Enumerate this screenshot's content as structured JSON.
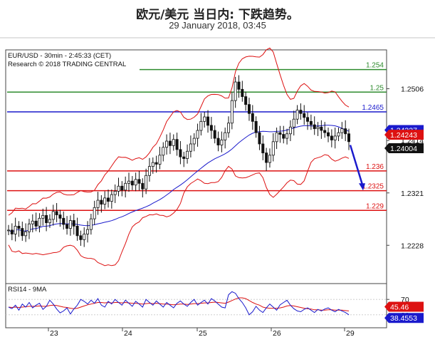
{
  "header": {
    "title": "欧元/美元 当日内: 下跌趋势。",
    "subtitle": "29 January 2018, 03:45"
  },
  "chart_data": {
    "type": "line",
    "symbol_line": "EUR/USD - 30min - 2:45:33 (CET)",
    "research_line": "Research © 2018 TRADING CENTRAL",
    "x_ticks": [
      "23",
      "24",
      "25",
      "26",
      "29"
    ],
    "y_ticks": [
      1.2506,
      1.2414,
      1.2321,
      1.2228
    ],
    "y_range": [
      1.216,
      1.2575
    ],
    "levels": [
      {
        "value": 1.254,
        "label": "1.254",
        "color": "#2e8b2e"
      },
      {
        "value": 1.25,
        "label": "1.25",
        "color": "#2e8b2e"
      },
      {
        "value": 1.2465,
        "label": "1.2465",
        "color": "#1a1acc"
      },
      {
        "value": 1.236,
        "label": "1.236",
        "color": "#dd1111"
      },
      {
        "value": 1.2325,
        "label": "1.2325",
        "color": "#dd1111"
      },
      {
        "value": 1.229,
        "label": "1.229",
        "color": "#dd1111"
      }
    ],
    "price_tags": [
      {
        "value": 1.24327,
        "label": "1.24327",
        "bg": "#1a1acc"
      },
      {
        "value": 1.24243,
        "label": "1.24243",
        "bg": "#dd1111"
      },
      {
        "value": 1.24004,
        "label": "1.24004",
        "bg": "#111111"
      }
    ],
    "price_series": [
      1.2255,
      1.2248,
      1.2262,
      1.2258,
      1.2245,
      1.2252,
      1.2266,
      1.2271,
      1.2262,
      1.2276,
      1.2281,
      1.2268,
      1.2274,
      1.2288,
      1.2282,
      1.2276,
      1.2265,
      1.2258,
      1.2272,
      1.2262,
      1.2245,
      1.2238,
      1.2248,
      1.2256,
      1.2275,
      1.2295,
      1.2308,
      1.2301,
      1.2312,
      1.2306,
      1.2318,
      1.2324,
      1.2333,
      1.2326,
      1.2338,
      1.2342,
      1.2335,
      1.2345,
      1.2338,
      1.2328,
      1.2352,
      1.2368,
      1.2375,
      1.2372,
      1.2388,
      1.2402,
      1.2413,
      1.2405,
      1.2416,
      1.2398,
      1.2385,
      1.2382,
      1.2395,
      1.2408,
      1.2418,
      1.2432,
      1.2448,
      1.2456,
      1.2441,
      1.2432,
      1.2418,
      1.2406,
      1.2415,
      1.2428,
      1.2445,
      1.2485,
      1.2518,
      1.2505,
      1.2492,
      1.2478,
      1.2462,
      1.2448,
      1.2428,
      1.2408,
      1.2392,
      1.2375,
      1.2388,
      1.2412,
      1.2428,
      1.2425,
      1.2418,
      1.2426,
      1.2438,
      1.2452,
      1.2468,
      1.2462,
      1.2455,
      1.2448,
      1.2442,
      1.2435,
      1.2438,
      1.2432,
      1.2428,
      1.2422,
      1.2415,
      1.2422,
      1.2428,
      1.2435,
      1.2426,
      1.2412
    ],
    "forecast_arrow": {
      "from_value": 1.2406,
      "to_value": 1.2328
    },
    "rsi": {
      "label": "RSI14 - 9MA",
      "y_ticks": [
        70,
        30
      ],
      "y_range": [
        0,
        100
      ],
      "tags": [
        {
          "value": 45.46,
          "label": "45.46",
          "bg": "#dd1111"
        },
        {
          "value": 38.4553,
          "label": "38.4553",
          "bg": "#1a1acc"
        }
      ],
      "rsi_series": [
        50,
        46,
        55,
        42,
        58,
        50,
        62,
        48,
        55,
        60,
        44,
        52,
        68,
        58,
        45,
        35,
        40,
        48,
        32,
        45,
        55,
        70,
        65,
        58,
        68,
        60,
        72,
        55,
        50,
        65,
        58,
        70,
        62,
        55,
        68,
        60,
        52,
        65,
        58,
        50,
        70,
        62,
        55,
        66,
        58,
        50,
        62,
        55,
        48,
        60,
        66,
        58,
        52,
        62,
        70,
        55,
        62,
        68,
        58,
        72,
        66,
        58,
        50,
        48,
        82,
        90,
        86,
        72,
        62,
        48,
        30,
        38,
        52,
        42,
        36,
        48,
        58,
        50,
        42,
        56,
        62,
        68,
        55,
        46,
        40,
        38,
        44,
        48,
        42,
        36,
        44,
        40,
        45,
        48,
        42,
        38,
        44,
        40,
        36,
        30
      ],
      "ma_series": [
        50,
        49,
        50,
        49,
        50,
        51,
        52,
        52,
        52,
        53,
        52,
        52,
        54,
        55,
        54,
        52,
        50,
        49,
        47,
        46,
        47,
        50,
        53,
        56,
        58,
        60,
        62,
        62,
        61,
        62,
        61,
        62,
        62,
        61,
        62,
        61,
        60,
        60,
        59,
        58,
        59,
        60,
        59,
        60,
        59,
        58,
        58,
        57,
        56,
        57,
        58,
        58,
        57,
        58,
        59,
        59,
        60,
        61,
        61,
        62,
        63,
        62,
        61,
        60,
        63,
        67,
        71,
        74,
        74,
        72,
        67,
        62,
        58,
        55,
        50,
        48,
        47,
        47,
        47,
        48,
        50,
        53,
        54,
        53,
        51,
        49,
        47,
        46,
        45,
        43,
        43,
        42,
        42,
        43,
        43,
        42,
        42,
        42,
        41,
        40
      ]
    }
  }
}
